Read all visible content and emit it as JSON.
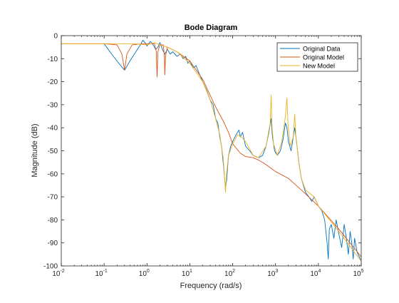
{
  "chart_data": {
    "type": "line",
    "title": "Bode Diagram",
    "xlabel": "Frequency  (rad/s)",
    "ylabel": "Magnitude (dB)",
    "xscale": "log",
    "xlim": [
      0.01,
      100000
    ],
    "ylim": [
      -100,
      0
    ],
    "x_ticks": [
      {
        "value": 0.01,
        "base": "10",
        "exp": "-2"
      },
      {
        "value": 0.1,
        "base": "10",
        "exp": "-1"
      },
      {
        "value": 1,
        "base": "10",
        "exp": "0"
      },
      {
        "value": 10,
        "base": "10",
        "exp": "1"
      },
      {
        "value": 100,
        "base": "10",
        "exp": "2"
      },
      {
        "value": 1000,
        "base": "10",
        "exp": "3"
      },
      {
        "value": 10000,
        "base": "10",
        "exp": "4"
      },
      {
        "value": 100000,
        "base": "10",
        "exp": "5"
      }
    ],
    "y_ticks": [
      0,
      -10,
      -20,
      -30,
      -40,
      -50,
      -60,
      -70,
      -80,
      -90,
      -100
    ],
    "legend_position": "top-right",
    "series": [
      {
        "name": "Original Data",
        "color": "#0072bd",
        "points": [
          [
            0.1,
            -3.5
          ],
          [
            0.15,
            -8
          ],
          [
            0.22,
            -12
          ],
          [
            0.3,
            -15
          ],
          [
            0.4,
            -11
          ],
          [
            0.55,
            -7
          ],
          [
            0.7,
            -4
          ],
          [
            0.8,
            -2
          ],
          [
            0.9,
            -3
          ],
          [
            1.0,
            -4.5
          ],
          [
            1.2,
            -2.5
          ],
          [
            1.4,
            -4
          ],
          [
            1.6,
            -6
          ],
          [
            1.8,
            -5
          ],
          [
            2.0,
            -3
          ],
          [
            2.3,
            -6
          ],
          [
            2.6,
            -8
          ],
          [
            3.0,
            -6
          ],
          [
            3.5,
            -8
          ],
          [
            4,
            -7
          ],
          [
            5,
            -9
          ],
          [
            6,
            -8
          ],
          [
            7,
            -10
          ],
          [
            8,
            -9
          ],
          [
            9,
            -12
          ],
          [
            10,
            -11
          ],
          [
            12,
            -14
          ],
          [
            14,
            -13
          ],
          [
            17,
            -17
          ],
          [
            20,
            -20
          ],
          [
            25,
            -24
          ],
          [
            30,
            -28
          ],
          [
            35,
            -30
          ],
          [
            40,
            -36
          ],
          [
            45,
            -38
          ],
          [
            50,
            -44
          ],
          [
            55,
            -48
          ],
          [
            60,
            -55
          ],
          [
            65,
            -62
          ],
          [
            68,
            -66
          ],
          [
            72,
            -63
          ],
          [
            80,
            -52
          ],
          [
            90,
            -48
          ],
          [
            100,
            -46
          ],
          [
            120,
            -43
          ],
          [
            140,
            -41
          ],
          [
            150,
            -44
          ],
          [
            170,
            -42
          ],
          [
            200,
            -48
          ],
          [
            250,
            -50
          ],
          [
            300,
            -52
          ],
          [
            400,
            -53
          ],
          [
            500,
            -52
          ],
          [
            600,
            -48
          ],
          [
            700,
            -42
          ],
          [
            780,
            -36
          ],
          [
            850,
            -44
          ],
          [
            950,
            -50
          ],
          [
            1100,
            -52
          ],
          [
            1300,
            -50
          ],
          [
            1500,
            -45
          ],
          [
            1700,
            -38
          ],
          [
            1850,
            -40
          ],
          [
            2000,
            -46
          ],
          [
            2300,
            -50
          ],
          [
            2500,
            -46
          ],
          [
            2800,
            -40
          ],
          [
            3000,
            -44
          ],
          [
            3500,
            -55
          ],
          [
            4000,
            -62
          ],
          [
            5000,
            -68
          ],
          [
            6000,
            -70
          ],
          [
            7000,
            -72
          ],
          [
            8000,
            -70
          ],
          [
            10000,
            -74
          ],
          [
            12000,
            -76
          ],
          [
            14000,
            -80
          ],
          [
            16000,
            -90
          ],
          [
            17000,
            -97
          ],
          [
            18000,
            -84
          ],
          [
            20000,
            -82
          ],
          [
            23000,
            -88
          ],
          [
            26000,
            -80
          ],
          [
            30000,
            -86
          ],
          [
            35000,
            -92
          ],
          [
            40000,
            -82
          ],
          [
            45000,
            -88
          ],
          [
            50000,
            -95
          ],
          [
            55000,
            -85
          ],
          [
            60000,
            -90
          ],
          [
            65000,
            -97
          ],
          [
            70000,
            -88
          ],
          [
            80000,
            -94
          ],
          [
            90000,
            -96
          ],
          [
            100000,
            -98
          ]
        ]
      },
      {
        "name": "Original Model",
        "color": "#d95319",
        "points": [
          [
            0.01,
            -3.5
          ],
          [
            0.1,
            -3.5
          ],
          [
            0.2,
            -4
          ],
          [
            0.26,
            -8
          ],
          [
            0.3,
            -15
          ],
          [
            0.34,
            -8
          ],
          [
            0.45,
            -4
          ],
          [
            0.8,
            -3.5
          ],
          [
            1.5,
            -3.5
          ],
          [
            1.65,
            -7
          ],
          [
            1.72,
            -18
          ],
          [
            1.8,
            -7
          ],
          [
            2.0,
            -4
          ],
          [
            2.4,
            -4
          ],
          [
            2.55,
            -9
          ],
          [
            2.62,
            -17
          ],
          [
            2.7,
            -9
          ],
          [
            3.0,
            -5
          ],
          [
            5,
            -7
          ],
          [
            10,
            -11
          ],
          [
            20,
            -19
          ],
          [
            30,
            -26
          ],
          [
            40,
            -31
          ],
          [
            60,
            -37
          ],
          [
            80,
            -42
          ],
          [
            100,
            -47
          ],
          [
            150,
            -51
          ],
          [
            200,
            -52.5
          ],
          [
            300,
            -53
          ],
          [
            400,
            -54
          ],
          [
            600,
            -56
          ],
          [
            1000,
            -59
          ],
          [
            2000,
            -62
          ],
          [
            4000,
            -67
          ],
          [
            10000,
            -74
          ],
          [
            30000,
            -84
          ],
          [
            100000,
            -96
          ]
        ]
      },
      {
        "name": "New Model",
        "color": "#edb120",
        "points": [
          [
            0.01,
            -3.5
          ],
          [
            0.1,
            -3.5
          ],
          [
            0.5,
            -3.5
          ],
          [
            1.0,
            -4
          ],
          [
            1.5,
            -3
          ],
          [
            2.0,
            -4
          ],
          [
            3,
            -5
          ],
          [
            5,
            -7
          ],
          [
            10,
            -12
          ],
          [
            20,
            -20
          ],
          [
            30,
            -28
          ],
          [
            40,
            -36
          ],
          [
            50,
            -43
          ],
          [
            60,
            -53
          ],
          [
            66,
            -64
          ],
          [
            68,
            -68
          ],
          [
            72,
            -60
          ],
          [
            80,
            -52
          ],
          [
            100,
            -47
          ],
          [
            130,
            -43
          ],
          [
            160,
            -44
          ],
          [
            200,
            -46
          ],
          [
            300,
            -52
          ],
          [
            400,
            -53
          ],
          [
            600,
            -48
          ],
          [
            750,
            -38
          ],
          [
            790,
            -26
          ],
          [
            830,
            -40
          ],
          [
            900,
            -47
          ],
          [
            1100,
            -52
          ],
          [
            1400,
            -46
          ],
          [
            1700,
            -35
          ],
          [
            1850,
            -27
          ],
          [
            1950,
            -38
          ],
          [
            2200,
            -48
          ],
          [
            2600,
            -44
          ],
          [
            2800,
            -34
          ],
          [
            3000,
            -44
          ],
          [
            3500,
            -55
          ],
          [
            4000,
            -62
          ],
          [
            5000,
            -67
          ],
          [
            8000,
            -70
          ],
          [
            10000,
            -74
          ],
          [
            30000,
            -85
          ],
          [
            100000,
            -98
          ]
        ]
      }
    ]
  }
}
